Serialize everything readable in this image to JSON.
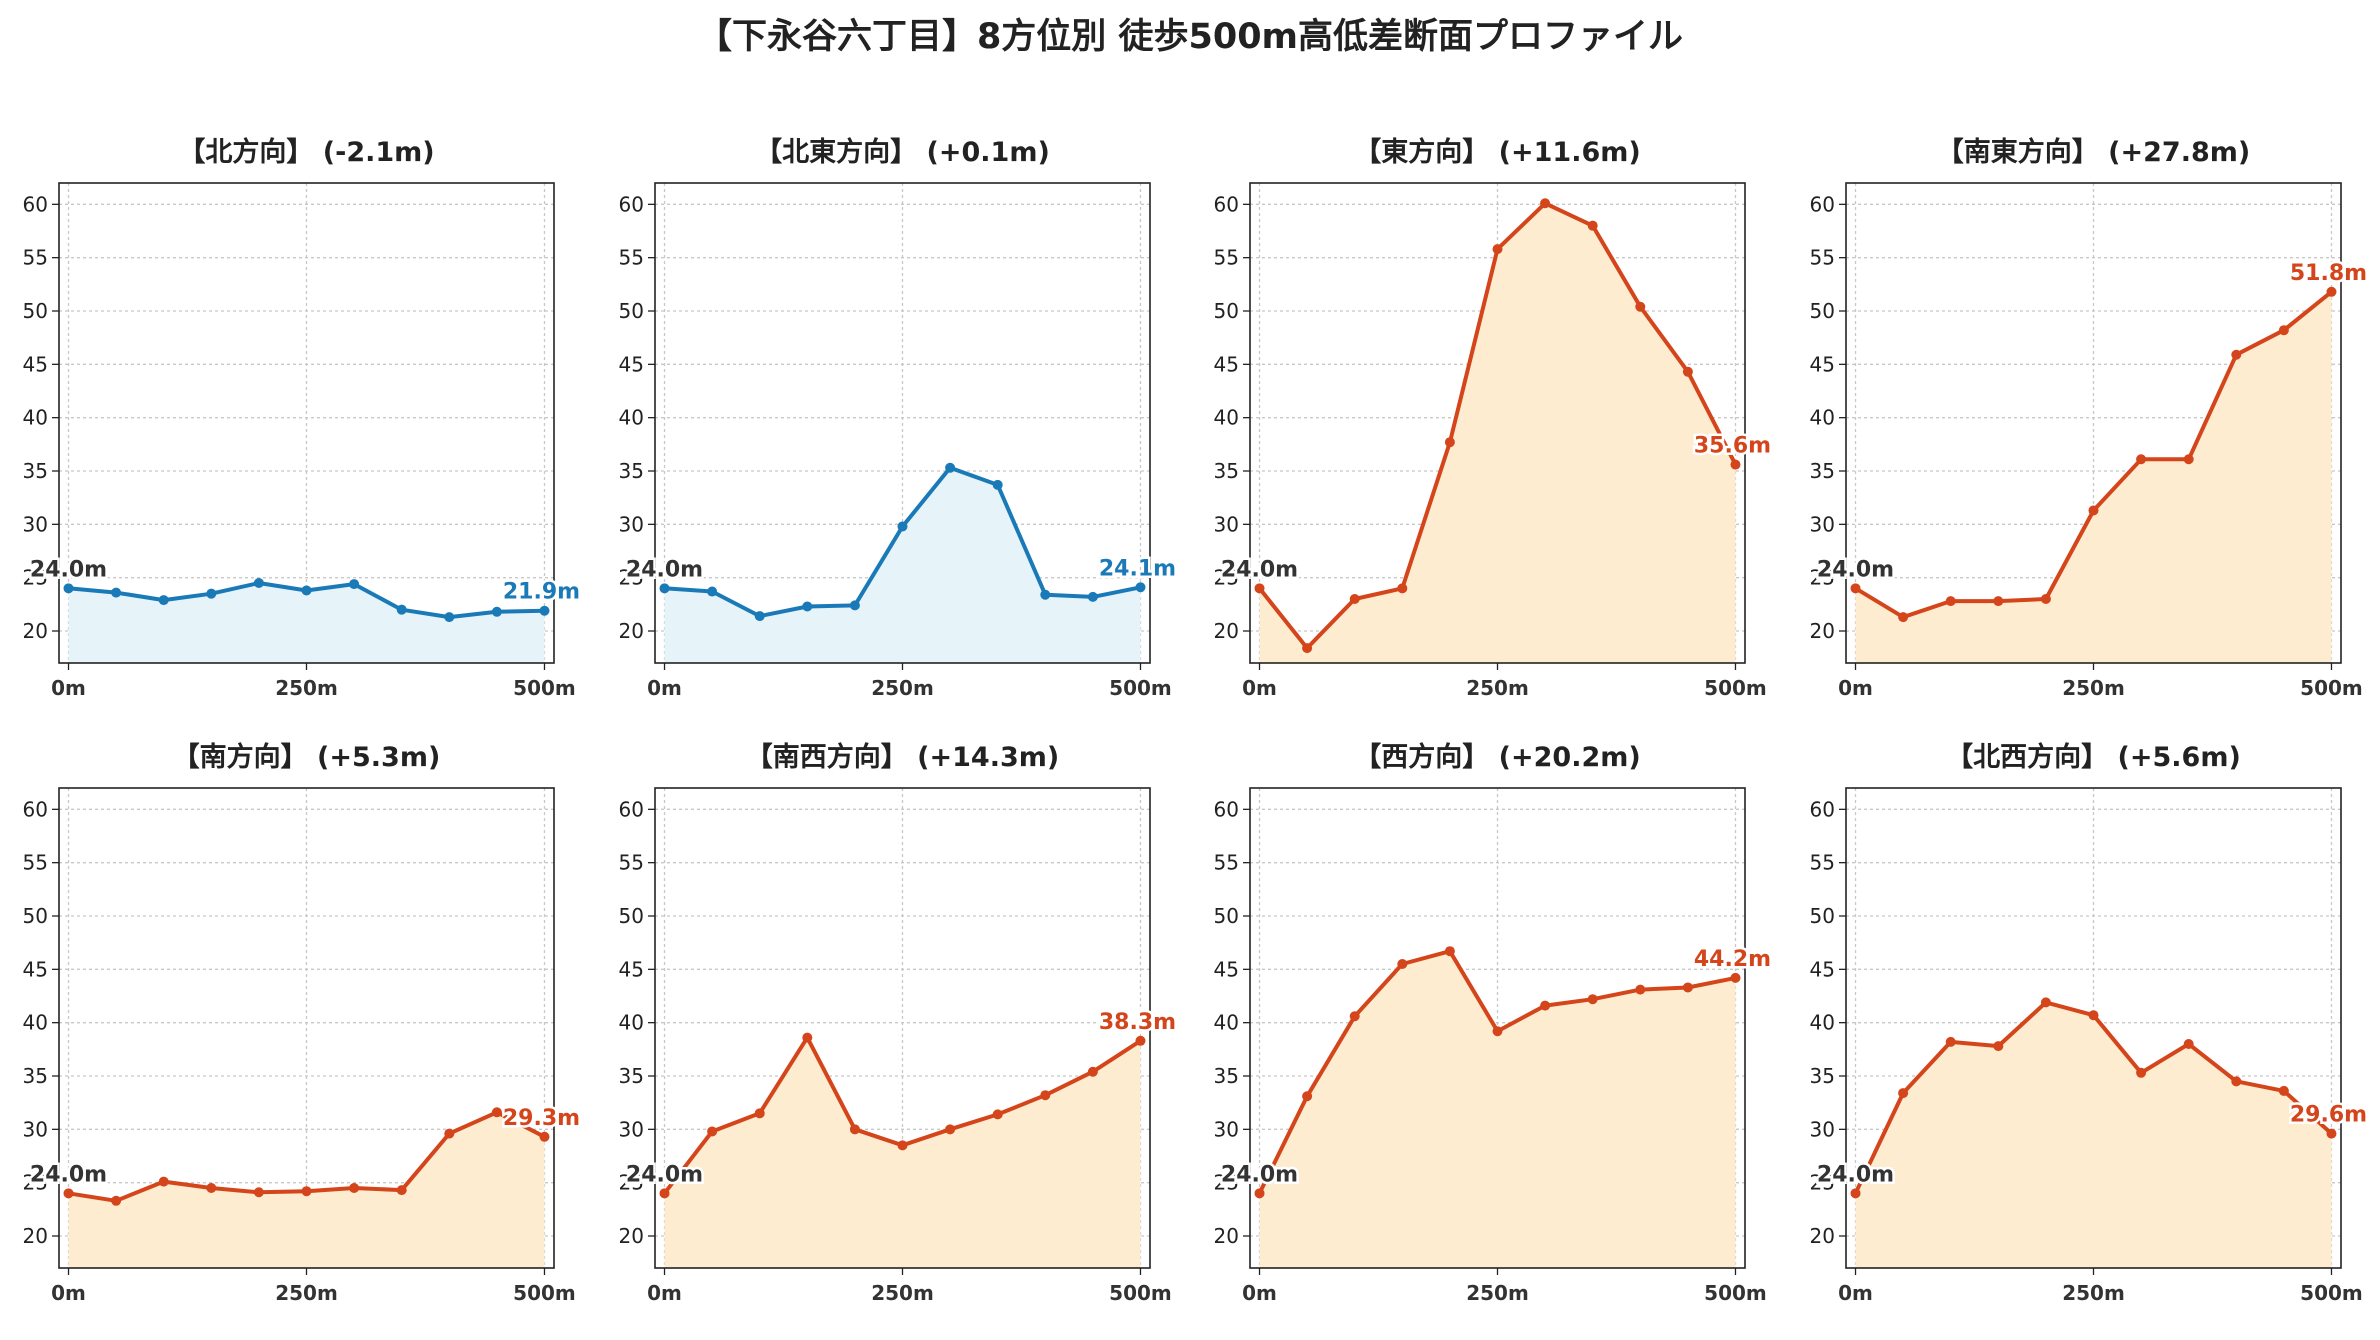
{
  "title": "【下永谷六丁目】8方位別 徒歩500m高低差断面プロファイル",
  "colors": {
    "down_line": "#1a7ab8",
    "down_fill": "#e6f4fa",
    "up_line": "#d4451b",
    "up_fill": "#fdecd0",
    "start_label": "#333333"
  },
  "chart_data": [
    {
      "type": "line",
      "title": "【北方向】 (-2.1m)",
      "trend": "down",
      "x": [
        0,
        50,
        100,
        150,
        200,
        250,
        300,
        350,
        400,
        450,
        500
      ],
      "values": [
        24.0,
        23.6,
        22.9,
        23.5,
        24.5,
        23.8,
        24.4,
        22.0,
        21.3,
        21.8,
        21.9
      ],
      "start_label": "24.0m",
      "end_label": "21.9m",
      "xticks": [
        "0m",
        "250m",
        "500m"
      ],
      "yticks": [
        "20",
        "25",
        "30",
        "35",
        "40",
        "45",
        "50",
        "55",
        "60"
      ],
      "ylim": [
        17,
        62
      ],
      "xlim": [
        -10,
        510
      ],
      "grid": true
    },
    {
      "type": "line",
      "title": "【北東方向】 (+0.1m)",
      "trend": "down",
      "x": [
        0,
        50,
        100,
        150,
        200,
        250,
        300,
        350,
        400,
        450,
        500
      ],
      "values": [
        24.0,
        23.7,
        21.4,
        22.3,
        22.4,
        29.8,
        35.3,
        33.7,
        23.4,
        23.2,
        24.1
      ],
      "start_label": "24.0m",
      "end_label": "24.1m",
      "xticks": [
        "0m",
        "250m",
        "500m"
      ],
      "yticks": [
        "20",
        "25",
        "30",
        "35",
        "40",
        "45",
        "50",
        "55",
        "60"
      ],
      "ylim": [
        17,
        62
      ],
      "xlim": [
        -10,
        510
      ],
      "grid": true
    },
    {
      "type": "line",
      "title": "【東方向】 (+11.6m)",
      "trend": "up",
      "x": [
        0,
        50,
        100,
        150,
        200,
        250,
        300,
        350,
        400,
        450,
        500
      ],
      "values": [
        24.0,
        18.4,
        23.0,
        24.0,
        37.7,
        55.8,
        60.1,
        58.0,
        50.4,
        44.3,
        35.6
      ],
      "start_label": "24.0m",
      "end_label": "35.6m",
      "xticks": [
        "0m",
        "250m",
        "500m"
      ],
      "yticks": [
        "20",
        "25",
        "30",
        "35",
        "40",
        "45",
        "50",
        "55",
        "60"
      ],
      "ylim": [
        17,
        62
      ],
      "xlim": [
        -10,
        510
      ],
      "grid": true
    },
    {
      "type": "line",
      "title": "【南東方向】 (+27.8m)",
      "trend": "up",
      "x": [
        0,
        50,
        100,
        150,
        200,
        250,
        300,
        350,
        400,
        450,
        500
      ],
      "values": [
        24.0,
        21.3,
        22.8,
        22.8,
        23.0,
        31.3,
        36.1,
        36.1,
        45.9,
        48.2,
        51.8
      ],
      "start_label": "24.0m",
      "end_label": "51.8m",
      "xticks": [
        "0m",
        "250m",
        "500m"
      ],
      "yticks": [
        "20",
        "25",
        "30",
        "35",
        "40",
        "45",
        "50",
        "55",
        "60"
      ],
      "ylim": [
        17,
        62
      ],
      "xlim": [
        -10,
        510
      ],
      "grid": true
    },
    {
      "type": "line",
      "title": "【南方向】 (+5.3m)",
      "trend": "up",
      "x": [
        0,
        50,
        100,
        150,
        200,
        250,
        300,
        350,
        400,
        450,
        500
      ],
      "values": [
        24.0,
        23.3,
        25.1,
        24.5,
        24.1,
        24.2,
        24.5,
        24.3,
        29.6,
        31.6,
        29.3
      ],
      "start_label": "24.0m",
      "end_label": "29.3m",
      "xticks": [
        "0m",
        "250m",
        "500m"
      ],
      "yticks": [
        "20",
        "25",
        "30",
        "35",
        "40",
        "45",
        "50",
        "55",
        "60"
      ],
      "ylim": [
        17,
        62
      ],
      "xlim": [
        -10,
        510
      ],
      "grid": true
    },
    {
      "type": "line",
      "title": "【南西方向】 (+14.3m)",
      "trend": "up",
      "x": [
        0,
        50,
        100,
        150,
        200,
        250,
        300,
        350,
        400,
        450,
        500
      ],
      "values": [
        24.0,
        29.8,
        31.5,
        38.6,
        30.0,
        28.5,
        30.0,
        31.4,
        33.2,
        35.4,
        38.3
      ],
      "start_label": "24.0m",
      "end_label": "38.3m",
      "xticks": [
        "0m",
        "250m",
        "500m"
      ],
      "yticks": [
        "20",
        "25",
        "30",
        "35",
        "40",
        "45",
        "50",
        "55",
        "60"
      ],
      "ylim": [
        17,
        62
      ],
      "xlim": [
        -10,
        510
      ],
      "grid": true
    },
    {
      "type": "line",
      "title": "【西方向】 (+20.2m)",
      "trend": "up",
      "x": [
        0,
        50,
        100,
        150,
        200,
        250,
        300,
        350,
        400,
        450,
        500
      ],
      "values": [
        24.0,
        33.1,
        40.6,
        45.5,
        46.7,
        39.2,
        41.6,
        42.2,
        43.1,
        43.3,
        44.2
      ],
      "start_label": "24.0m",
      "end_label": "44.2m",
      "xticks": [
        "0m",
        "250m",
        "500m"
      ],
      "yticks": [
        "20",
        "25",
        "30",
        "35",
        "40",
        "45",
        "50",
        "55",
        "60"
      ],
      "ylim": [
        17,
        62
      ],
      "xlim": [
        -10,
        510
      ],
      "grid": true
    },
    {
      "type": "line",
      "title": "【北西方向】 (+5.6m)",
      "trend": "up",
      "x": [
        0,
        50,
        100,
        150,
        200,
        250,
        300,
        350,
        400,
        450,
        500
      ],
      "values": [
        24.0,
        33.4,
        38.2,
        37.8,
        41.9,
        40.7,
        35.3,
        38.0,
        34.5,
        33.6,
        29.6
      ],
      "start_label": "24.0m",
      "end_label": "29.6m",
      "xticks": [
        "0m",
        "250m",
        "500m"
      ],
      "yticks": [
        "20",
        "25",
        "30",
        "35",
        "40",
        "45",
        "50",
        "55",
        "60"
      ],
      "ylim": [
        17,
        62
      ],
      "xlim": [
        -10,
        510
      ],
      "grid": true
    }
  ]
}
